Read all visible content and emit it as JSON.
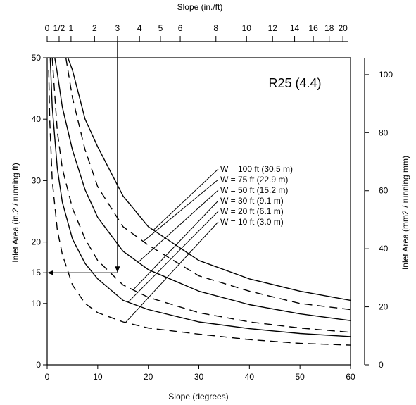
{
  "chart_data": {
    "type": "line",
    "title": "R25 (4.4)",
    "xlabel": "Slope (degrees)",
    "ylabel_left": "Inlet Area (in.2 / running ft)",
    "ylabel_right": "Inlet Area (mm2 / running mm)",
    "top_axis_label": "Slope (in./ft)",
    "xlim": [
      0,
      60
    ],
    "ylim_left": [
      0,
      50
    ],
    "ylim_right": [
      0,
      105.8
    ],
    "x_ticks": [
      "0",
      "10",
      "20",
      "30",
      "40",
      "50",
      "60"
    ],
    "y_left_ticks": [
      "0",
      "10",
      "15",
      "20",
      "30",
      "40",
      "50"
    ],
    "y_right_ticks": [
      "0",
      "20",
      "40",
      "60",
      "80",
      "100"
    ],
    "top_ticks": [
      "0",
      "1/2",
      "1",
      "2",
      "3",
      "4",
      "5",
      "6",
      "8",
      "10",
      "12",
      "14",
      "16",
      "18",
      "20"
    ],
    "top_tick_values": [
      0,
      0.5,
      1,
      2,
      3,
      4,
      5,
      6,
      8,
      10,
      12,
      14,
      16,
      18,
      20
    ],
    "annotations": [
      "15"
    ],
    "example": {
      "slope_in_per_ft": 3,
      "inlet_area": 15
    },
    "series": [
      {
        "name": "W = 100 ft (30.5 m)",
        "style": "solid",
        "x": [
          4.1,
          5,
          7.5,
          10,
          15,
          20,
          30,
          40,
          50,
          60
        ],
        "y": [
          50,
          48,
          40,
          35.5,
          27.5,
          22.5,
          17,
          14,
          12,
          10.5
        ]
      },
      {
        "name": "W =   75 ft (22.9 m)",
        "style": "dashed",
        "x": [
          3.7,
          5,
          7.5,
          10,
          15,
          20,
          30,
          40,
          50,
          60
        ],
        "y": [
          50,
          43.5,
          35,
          29,
          22.5,
          19.5,
          14.5,
          12,
          10,
          9
        ]
      },
      {
        "name": "W =   50 ft (15.2 m)",
        "style": "solid",
        "x": [
          1.5,
          2,
          3,
          5,
          7.5,
          10,
          15,
          20,
          30,
          40,
          50,
          60
        ],
        "y": [
          50,
          47.5,
          42,
          35,
          28.5,
          24,
          18.5,
          15.5,
          12,
          9.8,
          8.3,
          7.2
        ]
      },
      {
        "name": "W =   30 ft (9.1 m)",
        "style": "dashed",
        "x": [
          1,
          2,
          3,
          5,
          7.5,
          10,
          15,
          20,
          30,
          40,
          50,
          60
        ],
        "y": [
          50,
          38,
          32,
          25.5,
          20.5,
          17,
          13,
          11,
          8.5,
          7,
          6,
          5.3
        ]
      },
      {
        "name": "W =   20 ft (6.1 m)",
        "style": "solid",
        "x": [
          0.6,
          1,
          2,
          3,
          5,
          7.5,
          10,
          15,
          20,
          30,
          40,
          50,
          60
        ],
        "y": [
          50,
          42,
          32,
          26.5,
          20.5,
          16.5,
          14,
          10.5,
          9,
          7,
          5.9,
          5.1,
          4.6
        ]
      },
      {
        "name": "W =   10 ft (3.0 m)",
        "style": "dashed",
        "x": [
          0.3,
          0.5,
          1,
          2,
          3,
          5,
          7.5,
          10,
          15,
          20,
          30,
          40,
          50,
          60
        ],
        "y": [
          48,
          40,
          30,
          22,
          18,
          13,
          10,
          8.5,
          7,
          6,
          5,
          4.1,
          3.5,
          3.2
        ]
      }
    ]
  }
}
